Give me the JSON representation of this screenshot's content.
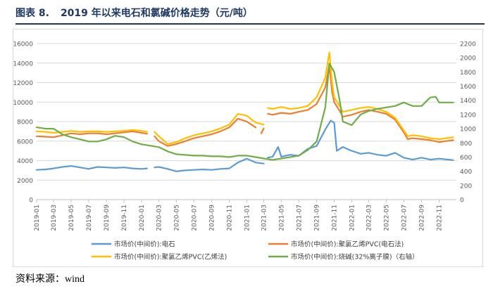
{
  "header": {
    "figure_label": "图表 8.",
    "figure_title": "2019 年以来电石和氯碱价格走势（元/吨）"
  },
  "footer": {
    "source_label": "资料来源：",
    "source_value": "wind"
  },
  "chart_data": {
    "type": "line",
    "y_left": {
      "min": 0,
      "max": 16000,
      "step": 2000,
      "ticks": [
        "0",
        "2000",
        "4000",
        "6000",
        "8000",
        "10000",
        "12000",
        "14000",
        "16000"
      ]
    },
    "y_right": {
      "min": 0,
      "max": 2200,
      "step": 200,
      "ticks": [
        "0",
        "200",
        "400",
        "600",
        "800",
        "1000",
        "1200",
        "1400",
        "1600",
        "1800",
        "2000",
        "2200"
      ]
    },
    "x_ticks": [
      "2019-01",
      "2019-03",
      "2019-05",
      "2019-07",
      "2019-09",
      "2019-11",
      "2020-01",
      "2020-03",
      "2020-05",
      "2020-07",
      "2020-09",
      "2020-11",
      "2021-01",
      "2021-03",
      "2021-05",
      "2021-07",
      "2021-09",
      "2021-11",
      "2022-01",
      "2022-03",
      "2022-05",
      "2022-07",
      "2022-09",
      "2022-11"
    ],
    "x_range": [
      "2019-01-01",
      "2022-12-31"
    ],
    "grid": true,
    "legend_position": "bottom",
    "series": [
      {
        "name": "市场价(中间价):电石",
        "axis": "left",
        "color": "#5b9bd5",
        "points": [
          [
            "2019-01-01",
            3050
          ],
          [
            "2019-02-01",
            3100
          ],
          [
            "2019-03-01",
            3200
          ],
          [
            "2019-04-01",
            3350
          ],
          [
            "2019-05-01",
            3450
          ],
          [
            "2019-06-01",
            3300
          ],
          [
            "2019-07-01",
            3150
          ],
          [
            "2019-08-01",
            3350
          ],
          [
            "2019-09-01",
            3300
          ],
          [
            "2019-10-01",
            3250
          ],
          [
            "2019-11-01",
            3300
          ],
          [
            "2019-12-01",
            3200
          ],
          [
            "2020-01-01",
            3150
          ],
          [
            "2020-01-20",
            3200
          ],
          null,
          [
            "2020-02-15",
            3300
          ],
          [
            "2020-03-01",
            3350
          ],
          [
            "2020-04-01",
            3150
          ],
          [
            "2020-05-01",
            2900
          ],
          [
            "2020-06-01",
            3000
          ],
          [
            "2020-07-01",
            3050
          ],
          [
            "2020-08-01",
            3100
          ],
          [
            "2020-09-01",
            3050
          ],
          [
            "2020-10-01",
            3150
          ],
          [
            "2020-11-01",
            3200
          ],
          [
            "2020-12-01",
            3800
          ],
          [
            "2021-01-01",
            4200
          ],
          [
            "2021-02-01",
            3800
          ],
          [
            "2021-03-01",
            3700
          ],
          null,
          [
            "2021-03-15",
            4300
          ],
          [
            "2021-04-01",
            4400
          ],
          [
            "2021-04-20",
            5400
          ],
          [
            "2021-05-01",
            4400
          ],
          [
            "2021-06-01",
            4600
          ],
          [
            "2021-07-01",
            4500
          ],
          [
            "2021-08-01",
            5200
          ],
          [
            "2021-09-01",
            5500
          ],
          [
            "2021-10-01",
            7200
          ],
          [
            "2021-10-20",
            8100
          ],
          [
            "2021-11-01",
            7900
          ],
          [
            "2021-11-10",
            5000
          ],
          [
            "2021-12-01",
            5400
          ],
          [
            "2022-01-01",
            5000
          ],
          [
            "2022-02-01",
            4700
          ],
          [
            "2022-03-01",
            4800
          ],
          [
            "2022-04-01",
            4600
          ],
          [
            "2022-05-01",
            4500
          ],
          [
            "2022-06-01",
            4800
          ],
          [
            "2022-07-01",
            4300
          ],
          [
            "2022-08-01",
            4100
          ],
          [
            "2022-09-01",
            4300
          ],
          [
            "2022-10-01",
            4100
          ],
          [
            "2022-11-01",
            4200
          ],
          [
            "2022-12-20",
            4050
          ]
        ]
      },
      {
        "name": "市场价(中间价):聚氯乙烯PVC(电石法)",
        "axis": "left",
        "color": "#ed7d31",
        "points": [
          [
            "2019-01-01",
            6500
          ],
          [
            "2019-02-01",
            6450
          ],
          [
            "2019-03-01",
            6400
          ],
          [
            "2019-04-01",
            6600
          ],
          [
            "2019-05-01",
            6800
          ],
          [
            "2019-06-01",
            6700
          ],
          [
            "2019-07-01",
            6800
          ],
          [
            "2019-08-01",
            6800
          ],
          [
            "2019-09-01",
            6700
          ],
          [
            "2019-10-01",
            6800
          ],
          [
            "2019-11-01",
            6900
          ],
          [
            "2019-12-01",
            7000
          ],
          [
            "2020-01-01",
            6850
          ],
          [
            "2020-01-20",
            6750
          ],
          null,
          [
            "2020-02-15",
            6500
          ],
          [
            "2020-03-01",
            6000
          ],
          [
            "2020-04-01",
            5500
          ],
          [
            "2020-05-01",
            5700
          ],
          [
            "2020-06-01",
            6000
          ],
          [
            "2020-07-01",
            6300
          ],
          [
            "2020-08-01",
            6500
          ],
          [
            "2020-09-01",
            6700
          ],
          [
            "2020-10-01",
            7000
          ],
          [
            "2020-11-01",
            7400
          ],
          [
            "2020-12-01",
            8300
          ],
          [
            "2021-01-01",
            8000
          ],
          [
            "2021-02-01",
            7400
          ],
          null,
          [
            "2021-02-20",
            6800
          ],
          [
            "2021-03-01",
            7300
          ],
          null,
          [
            "2021-03-15",
            8800
          ],
          [
            "2021-04-01",
            8700
          ],
          [
            "2021-05-01",
            8900
          ],
          [
            "2021-06-01",
            8800
          ],
          [
            "2021-07-01",
            9000
          ],
          [
            "2021-08-01",
            9200
          ],
          [
            "2021-09-01",
            9800
          ],
          [
            "2021-10-01",
            11500
          ],
          [
            "2021-10-15",
            13800
          ],
          [
            "2021-10-25",
            11000
          ],
          [
            "2021-11-01",
            10000
          ],
          [
            "2021-11-20",
            9100
          ],
          [
            "2021-12-01",
            8500
          ],
          [
            "2022-01-01",
            8700
          ],
          [
            "2022-02-01",
            9000
          ],
          [
            "2022-03-01",
            9200
          ],
          [
            "2022-04-01",
            9000
          ],
          [
            "2022-05-01",
            8800
          ],
          [
            "2022-06-01",
            8200
          ],
          [
            "2022-07-01",
            6900
          ],
          [
            "2022-07-15",
            6200
          ],
          [
            "2022-08-01",
            6300
          ],
          [
            "2022-09-01",
            6200
          ],
          [
            "2022-10-01",
            6100
          ],
          [
            "2022-11-01",
            5900
          ],
          [
            "2022-12-20",
            6100
          ]
        ]
      },
      {
        "name": "市场价(中间价):聚氯乙烯PVC(乙烯法)",
        "axis": "left",
        "color": "#ffc000",
        "points": [
          [
            "2019-01-01",
            7000
          ],
          [
            "2019-02-01",
            6950
          ],
          [
            "2019-03-01",
            6850
          ],
          [
            "2019-04-01",
            6950
          ],
          [
            "2019-05-01",
            7050
          ],
          [
            "2019-06-01",
            6950
          ],
          [
            "2019-07-01",
            7000
          ],
          [
            "2019-08-01",
            7000
          ],
          [
            "2019-09-01",
            6950
          ],
          [
            "2019-10-01",
            7000
          ],
          [
            "2019-11-01",
            7050
          ],
          [
            "2019-12-01",
            7150
          ],
          [
            "2020-01-01",
            7050
          ],
          [
            "2020-01-20",
            6950
          ],
          null,
          [
            "2020-02-15",
            6950
          ],
          [
            "2020-03-01",
            6500
          ],
          [
            "2020-04-01",
            5700
          ],
          [
            "2020-05-01",
            5900
          ],
          [
            "2020-06-01",
            6300
          ],
          [
            "2020-07-01",
            6600
          ],
          [
            "2020-08-01",
            6800
          ],
          [
            "2020-09-01",
            7000
          ],
          [
            "2020-10-01",
            7300
          ],
          [
            "2020-11-01",
            7700
          ],
          [
            "2020-12-01",
            8800
          ],
          [
            "2021-01-01",
            8600
          ],
          [
            "2021-02-01",
            7900
          ],
          [
            "2021-03-01",
            7700
          ],
          null,
          [
            "2021-03-15",
            9400
          ],
          [
            "2021-04-01",
            9300
          ],
          [
            "2021-05-01",
            9500
          ],
          [
            "2021-06-01",
            9300
          ],
          [
            "2021-07-01",
            9400
          ],
          [
            "2021-08-01",
            9600
          ],
          [
            "2021-09-01",
            10500
          ],
          [
            "2021-10-01",
            12500
          ],
          [
            "2021-10-15",
            15100
          ],
          [
            "2021-10-25",
            12000
          ],
          [
            "2021-11-01",
            10500
          ],
          [
            "2021-11-20",
            9600
          ],
          [
            "2021-12-01",
            9000
          ],
          [
            "2022-01-01",
            9200
          ],
          [
            "2022-02-01",
            9400
          ],
          [
            "2022-03-01",
            9500
          ],
          [
            "2022-04-01",
            9300
          ],
          [
            "2022-05-01",
            9000
          ],
          [
            "2022-06-01",
            8400
          ],
          [
            "2022-07-01",
            7100
          ],
          [
            "2022-07-15",
            6500
          ],
          [
            "2022-08-01",
            6600
          ],
          [
            "2022-09-01",
            6500
          ],
          [
            "2022-10-01",
            6300
          ],
          [
            "2022-11-01",
            6200
          ],
          [
            "2022-12-20",
            6400
          ]
        ]
      },
      {
        "name": "市场价(中间价):烧碱(32%离子膜)（右轴）",
        "axis": "right",
        "color": "#70ad47",
        "points": [
          [
            "2019-01-01",
            1020
          ],
          [
            "2019-02-01",
            1000
          ],
          [
            "2019-03-01",
            1000
          ],
          [
            "2019-04-01",
            920
          ],
          [
            "2019-05-01",
            880
          ],
          [
            "2019-06-01",
            850
          ],
          [
            "2019-07-01",
            820
          ],
          [
            "2019-08-01",
            820
          ],
          [
            "2019-09-01",
            850
          ],
          [
            "2019-10-01",
            900
          ],
          [
            "2019-11-01",
            880
          ],
          [
            "2019-12-01",
            820
          ],
          [
            "2020-01-01",
            780
          ],
          [
            "2020-02-01",
            760
          ],
          [
            "2020-03-01",
            740
          ],
          [
            "2020-04-01",
            680
          ],
          [
            "2020-05-01",
            640
          ],
          [
            "2020-06-01",
            630
          ],
          [
            "2020-07-01",
            620
          ],
          [
            "2020-08-01",
            620
          ],
          [
            "2020-09-01",
            610
          ],
          [
            "2020-10-01",
            610
          ],
          [
            "2020-11-01",
            600
          ],
          [
            "2020-12-01",
            620
          ],
          [
            "2021-01-01",
            620
          ],
          [
            "2021-02-01",
            600
          ],
          [
            "2021-03-01",
            580
          ],
          [
            "2021-04-01",
            560
          ],
          [
            "2021-05-01",
            580
          ],
          [
            "2021-06-01",
            600
          ],
          [
            "2021-07-01",
            620
          ],
          [
            "2021-08-01",
            700
          ],
          [
            "2021-09-01",
            820
          ],
          [
            "2021-10-01",
            1300
          ],
          [
            "2021-10-15",
            1920
          ],
          [
            "2021-11-01",
            1800
          ],
          [
            "2021-11-20",
            1400
          ],
          [
            "2021-12-01",
            1100
          ],
          [
            "2022-01-01",
            1050
          ],
          [
            "2022-02-01",
            1200
          ],
          [
            "2022-03-01",
            1250
          ],
          [
            "2022-04-01",
            1280
          ],
          [
            "2022-05-01",
            1300
          ],
          [
            "2022-06-01",
            1320
          ],
          [
            "2022-07-01",
            1370
          ],
          [
            "2022-08-01",
            1320
          ],
          [
            "2022-09-01",
            1320
          ],
          [
            "2022-10-01",
            1440
          ],
          [
            "2022-10-20",
            1450
          ],
          [
            "2022-11-01",
            1370
          ],
          [
            "2022-12-20",
            1370
          ]
        ]
      }
    ]
  }
}
